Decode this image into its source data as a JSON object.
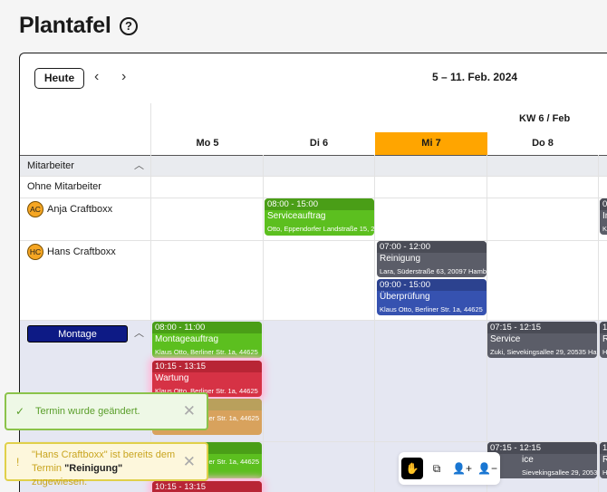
{
  "header": {
    "title": "Plantafel",
    "help_icon": "?"
  },
  "toolbar": {
    "today": "Heute",
    "prev": "‹",
    "next": "›",
    "range": "5 – 11. Feb. 2024"
  },
  "calendar": {
    "week": "KW 6 / Feb",
    "days": [
      {
        "label": "Mo 5"
      },
      {
        "label": "Di 6"
      },
      {
        "label": "Mi 7",
        "today": true
      },
      {
        "label": "Do 8"
      }
    ],
    "today_color": "#ffa500",
    "group_employees": "Mitarbeiter",
    "rows": {
      "none": "Ohne Mitarbeiter",
      "anja": {
        "initials": "AC",
        "name": "Anja Craftboxx"
      },
      "hans": {
        "initials": "HC",
        "name": "Hans Craftboxx"
      }
    },
    "group_montage": "Montage",
    "events": {
      "anja_di": {
        "time": "08:00 - 15:00",
        "title": "Serviceauftrag",
        "addr": "Otto, Eppendorfer Landstraße 15, 2"
      },
      "hans_mi1": {
        "time": "07:00 - 12:00",
        "title": "Reinigung",
        "addr": "Lara, Süderstraße 63, 20097 Hamb"
      },
      "hans_mi2": {
        "time": "09:00 - 15:00",
        "title": "Überprüfung",
        "addr": "Klaus Otto, Berliner Str. 1a, 44625"
      },
      "m_mo1": {
        "time": "08:00 - 11:00",
        "title": "Montageauftrag",
        "addr": "Klaus Otto, Berliner Str. 1a, 44625"
      },
      "m_mo2": {
        "time": "10:15 - 13:15",
        "title": "Wartung",
        "addr": "Klaus Otto, Berliner Str. 1a, 44625"
      },
      "m_mo3": {
        "addr": "er Str. 1a, 44625"
      },
      "m_mo4": {
        "addr": "er Str. 1a, 44625"
      },
      "m_mo5": {
        "time": "10:15 - 13:15"
      },
      "m_do1": {
        "time": "07:15 - 12:15",
        "title": "Service",
        "addr": "Zuki, Sievekingsallee 29, 20535 Ha"
      },
      "m_do2": {
        "time": "07:15 - 12:15",
        "title": "ice",
        "addr": "Sievekingsallee 29, 20535 Ha"
      },
      "fr1": {
        "time": "0",
        "title": "Ir",
        "addr": "K"
      },
      "fr2": {
        "time": "1",
        "title": "R",
        "addr": "H"
      },
      "fr3": {
        "time": "1",
        "title": "R",
        "addr": "H"
      }
    }
  },
  "toasts": {
    "success": {
      "text": "Termin wurde geändert."
    },
    "warning": {
      "pre": "\"Hans Craftboxx\" ist bereits dem Termin ",
      "bold": "\"Reinigung\"",
      "post": " zugewiesen."
    }
  }
}
